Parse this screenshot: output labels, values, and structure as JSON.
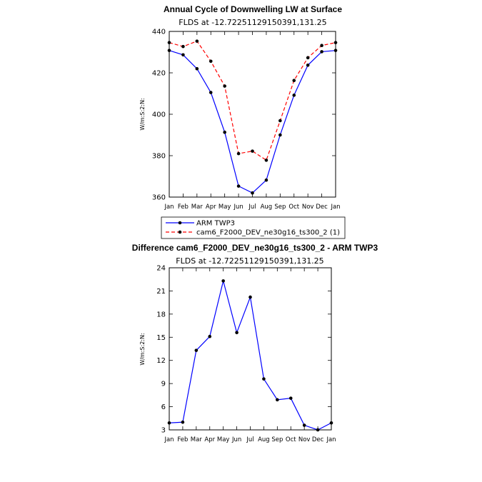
{
  "chart_data": [
    {
      "type": "line",
      "title": "Annual Cycle of Downwelling LW at Surface",
      "subtitle": "FLDS at -12.72251129150391,131.25",
      "ylabel": "W/m:S:2:N:",
      "xlabel": "",
      "categories": [
        "Jan",
        "Feb",
        "Mar",
        "Apr",
        "May",
        "Jun",
        "Jul",
        "Aug",
        "Sep",
        "Oct",
        "Nov",
        "Dec",
        "Jan"
      ],
      "ylim": [
        360,
        440
      ],
      "yticks": [
        360,
        380,
        400,
        420,
        440
      ],
      "legend": "bottom",
      "series": [
        {
          "name": "ARM TWP3",
          "color": "#0000ff",
          "dash": "solid",
          "values": [
            430.8,
            428.7,
            422.0,
            410.5,
            391.3,
            365.3,
            362.0,
            368.2,
            390.0,
            409.2,
            423.7,
            430.2,
            430.8
          ]
        },
        {
          "name": "cam6_F2000_DEV_ne30g16_ts300_2 (1)",
          "color": "#ff0000",
          "dash": "dashed",
          "values": [
            434.6,
            432.7,
            435.3,
            425.6,
            413.6,
            381.0,
            382.2,
            377.8,
            396.9,
            416.3,
            427.3,
            433.2,
            434.6
          ]
        }
      ]
    },
    {
      "type": "line",
      "title": "Difference cam6_F2000_DEV_ne30g16_ts300_2 - ARM TWP3",
      "subtitle": "FLDS at -12.72251129150391,131.25",
      "ylabel": "W/m:S:2:N:",
      "xlabel": "",
      "categories": [
        "Jan",
        "Feb",
        "Mar",
        "Apr",
        "May",
        "Jun",
        "Jul",
        "Aug",
        "Sep",
        "Oct",
        "Nov",
        "Dec",
        "Jan"
      ],
      "ylim": [
        3,
        24
      ],
      "yticks": [
        3,
        6,
        9,
        12,
        15,
        18,
        21,
        24
      ],
      "series": [
        {
          "name": "",
          "color": "#0000ff",
          "dash": "solid",
          "values": [
            3.9,
            4.0,
            13.3,
            15.1,
            22.3,
            15.6,
            20.2,
            9.6,
            6.9,
            7.1,
            3.6,
            3.0,
            3.9
          ]
        }
      ]
    }
  ]
}
